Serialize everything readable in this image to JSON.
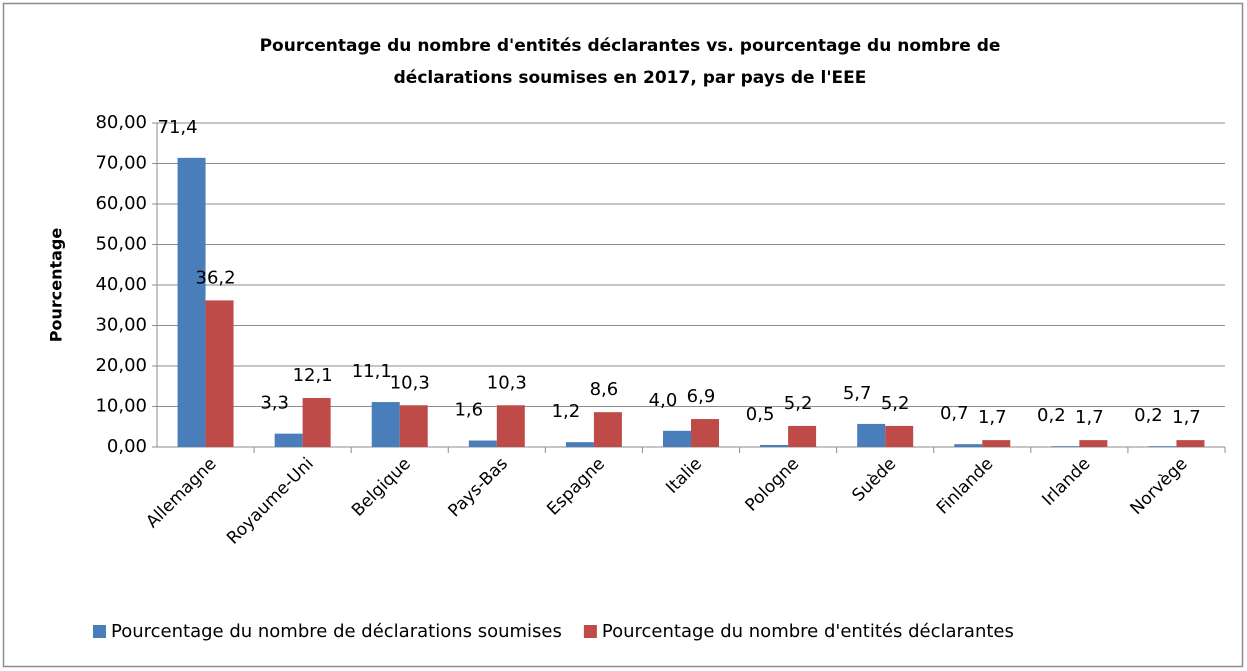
{
  "chart_data": {
    "type": "bar",
    "title": [
      "Pourcentage du nombre d'entités déclarantes vs. pourcentage du nombre de",
      "déclarations soumises en 2017, par pays de l'EEE"
    ],
    "y_label": "Pourcentage",
    "categories": [
      "Allemagne",
      "Royaume-Uni",
      "Belgique",
      "Pays-Bas",
      "Espagne",
      "Italie",
      "Pologne",
      "Suède",
      "Finlande",
      "Irlande",
      "Norvège"
    ],
    "series": [
      {
        "name": "Pourcentage du nombre de déclarations soumises",
        "color": "#4a7ebb",
        "values": [
          71.4,
          3.3,
          11.1,
          1.6,
          1.2,
          4.0,
          0.5,
          5.7,
          0.7,
          0.2,
          0.2
        ],
        "value_labels": [
          "71,4",
          "3,3",
          "11,1",
          "1,6",
          "1,2",
          "4,0",
          "0,5",
          "5,7",
          "0,7",
          "0,2",
          "0,2"
        ]
      },
      {
        "name": "Pourcentage du nombre d'entités déclarantes",
        "color": "#be4b48",
        "values": [
          36.2,
          12.1,
          10.3,
          10.3,
          8.6,
          6.9,
          5.2,
          5.2,
          1.7,
          1.7,
          1.7
        ],
        "value_labels": [
          "36,2",
          "12,1",
          "10,3",
          "10,3",
          "8,6",
          "6,9",
          "5,2",
          "5,2",
          "1,7",
          "1,7",
          "1,7"
        ]
      }
    ],
    "ylim": [
      0,
      80
    ],
    "yticks": [
      {
        "value": 0,
        "label": "0,00"
      },
      {
        "value": 10,
        "label": "10,00"
      },
      {
        "value": 20,
        "label": "20,00"
      },
      {
        "value": 30,
        "label": "30,00"
      },
      {
        "value": 40,
        "label": "40,00"
      },
      {
        "value": 50,
        "label": "50,00"
      },
      {
        "value": 60,
        "label": "60,00"
      },
      {
        "value": 70,
        "label": "70,00"
      },
      {
        "value": 80,
        "label": "80,00"
      }
    ],
    "grid": true,
    "legend": "bottom"
  }
}
